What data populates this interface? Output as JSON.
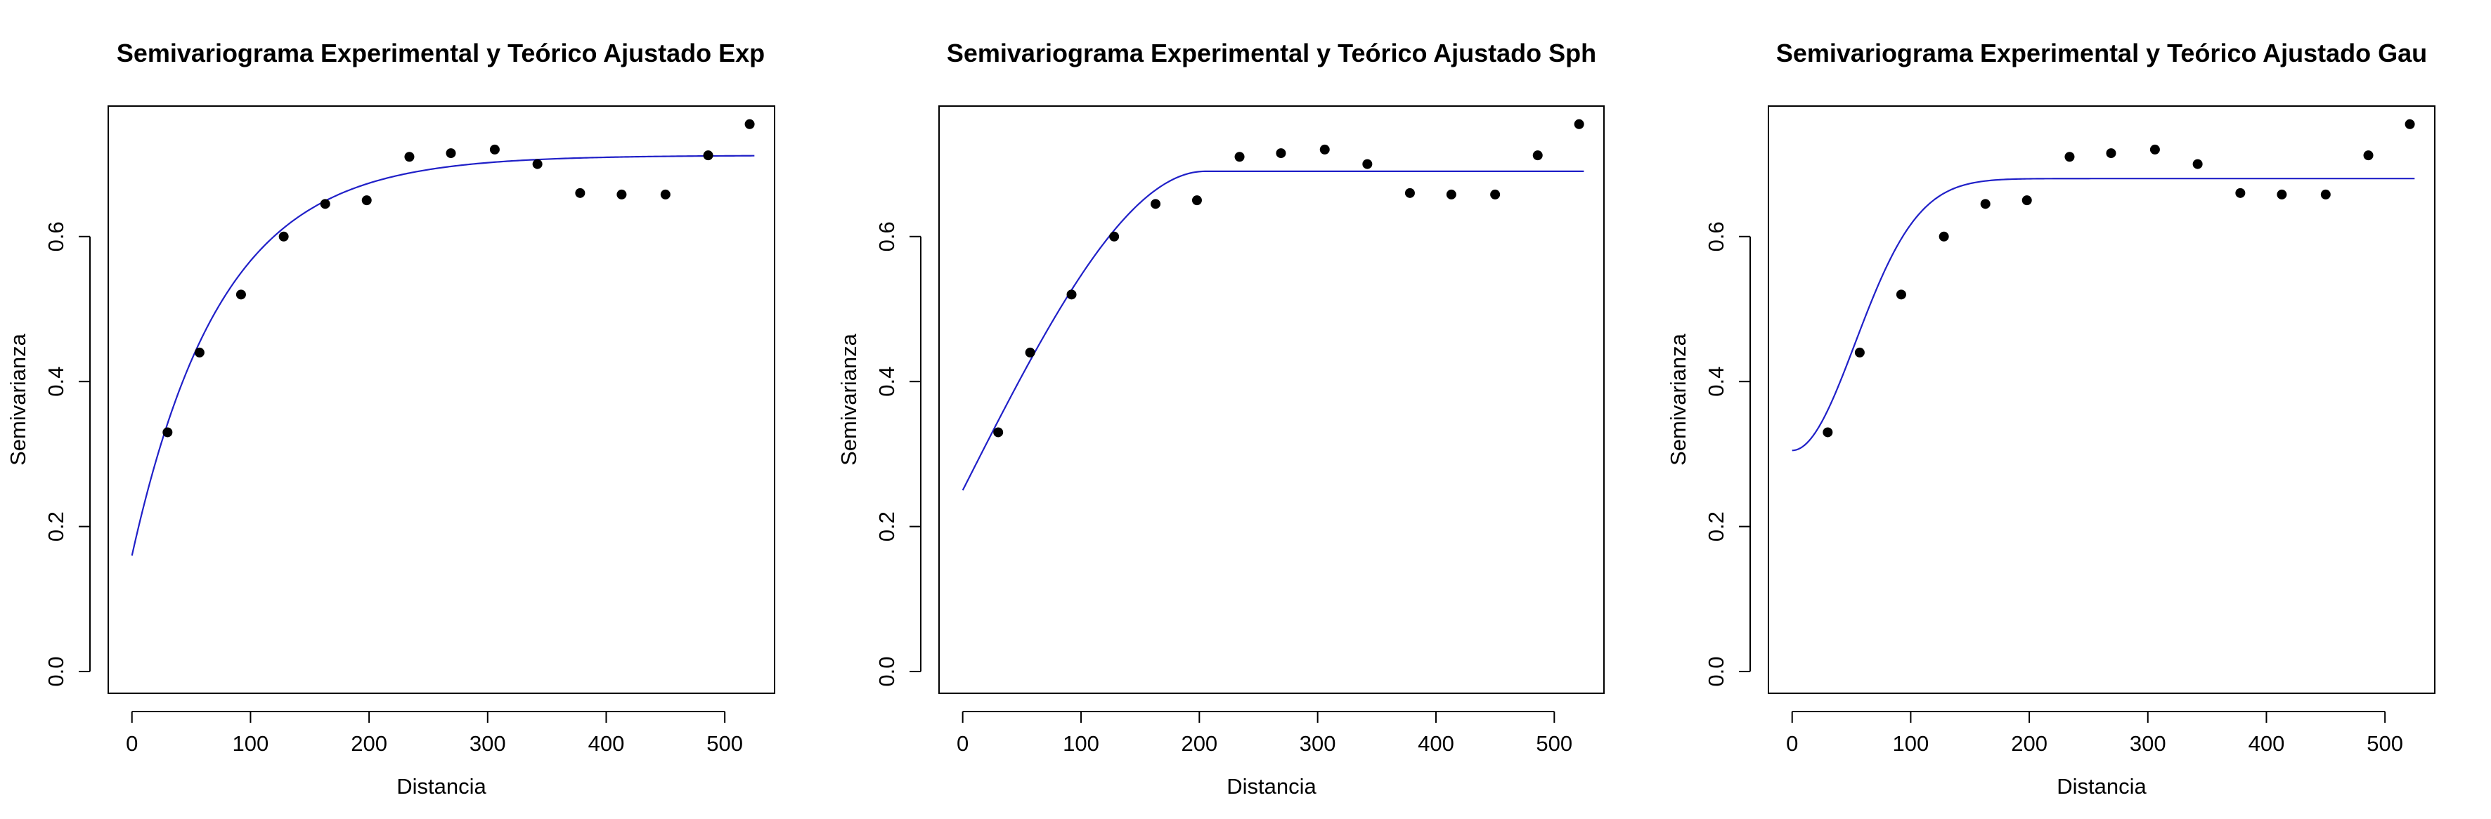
{
  "chart_data": [
    {
      "type": "scatter",
      "title": "Semivariograma Experimental y Teórico Ajustado Exp",
      "xlabel": "Distancia",
      "ylabel": "Semivarianza",
      "xticks": [
        "0",
        "100",
        "200",
        "300",
        "400",
        "500"
      ],
      "yticks": [
        "0.0",
        "0.2",
        "0.4",
        "0.6"
      ],
      "xlim": [
        -20,
        542
      ],
      "ylim": [
        -0.03,
        0.78
      ],
      "grid": false,
      "series": [
        {
          "kind": "points",
          "x": [
            30,
            57,
            92,
            128,
            163,
            198,
            234,
            269,
            306,
            342,
            378,
            413,
            450,
            486,
            521
          ],
          "y": [
            0.33,
            0.44,
            0.52,
            0.6,
            0.645,
            0.65,
            0.71,
            0.715,
            0.72,
            0.7,
            0.66,
            0.658,
            0.658,
            0.712,
            0.755
          ]
        },
        {
          "kind": "line",
          "model": "exponential",
          "color": "#2020c8",
          "nugget": 0.16,
          "sill": 0.712,
          "range": 75,
          "xmin": 0,
          "xmax": 525
        }
      ]
    },
    {
      "type": "scatter",
      "title": "Semivariograma Experimental y Teórico Ajustado Sph",
      "xlabel": "Distancia",
      "ylabel": "Semivarianza",
      "xticks": [
        "0",
        "100",
        "200",
        "300",
        "400",
        "500"
      ],
      "yticks": [
        "0.0",
        "0.2",
        "0.4",
        "0.6"
      ],
      "xlim": [
        -20,
        542
      ],
      "ylim": [
        -0.03,
        0.78
      ],
      "grid": false,
      "series": [
        {
          "kind": "points",
          "x": [
            30,
            57,
            92,
            128,
            163,
            198,
            234,
            269,
            306,
            342,
            378,
            413,
            450,
            486,
            521
          ],
          "y": [
            0.33,
            0.44,
            0.52,
            0.6,
            0.645,
            0.65,
            0.71,
            0.715,
            0.72,
            0.7,
            0.66,
            0.658,
            0.658,
            0.712,
            0.755
          ]
        },
        {
          "kind": "line",
          "model": "spherical",
          "color": "#2020c8",
          "nugget": 0.25,
          "sill": 0.69,
          "range": 205,
          "xmin": 0,
          "xmax": 525
        }
      ]
    },
    {
      "type": "scatter",
      "title": "Semivariograma Experimental y Teórico Ajustado Gau",
      "xlabel": "Distancia",
      "ylabel": "Semivarianza",
      "xticks": [
        "0",
        "100",
        "200",
        "300",
        "400",
        "500"
      ],
      "yticks": [
        "0.0",
        "0.2",
        "0.4",
        "0.6"
      ],
      "xlim": [
        -20,
        542
      ],
      "ylim": [
        -0.03,
        0.78
      ],
      "grid": false,
      "series": [
        {
          "kind": "points",
          "x": [
            30,
            57,
            92,
            128,
            163,
            198,
            234,
            269,
            306,
            342,
            378,
            413,
            450,
            486,
            521
          ],
          "y": [
            0.33,
            0.44,
            0.52,
            0.6,
            0.645,
            0.65,
            0.71,
            0.715,
            0.72,
            0.7,
            0.66,
            0.658,
            0.658,
            0.712,
            0.755
          ]
        },
        {
          "kind": "line",
          "model": "gaussian",
          "color": "#2020c8",
          "nugget": 0.305,
          "sill": 0.68,
          "range": 75,
          "xmin": 0,
          "xmax": 525
        }
      ]
    }
  ]
}
